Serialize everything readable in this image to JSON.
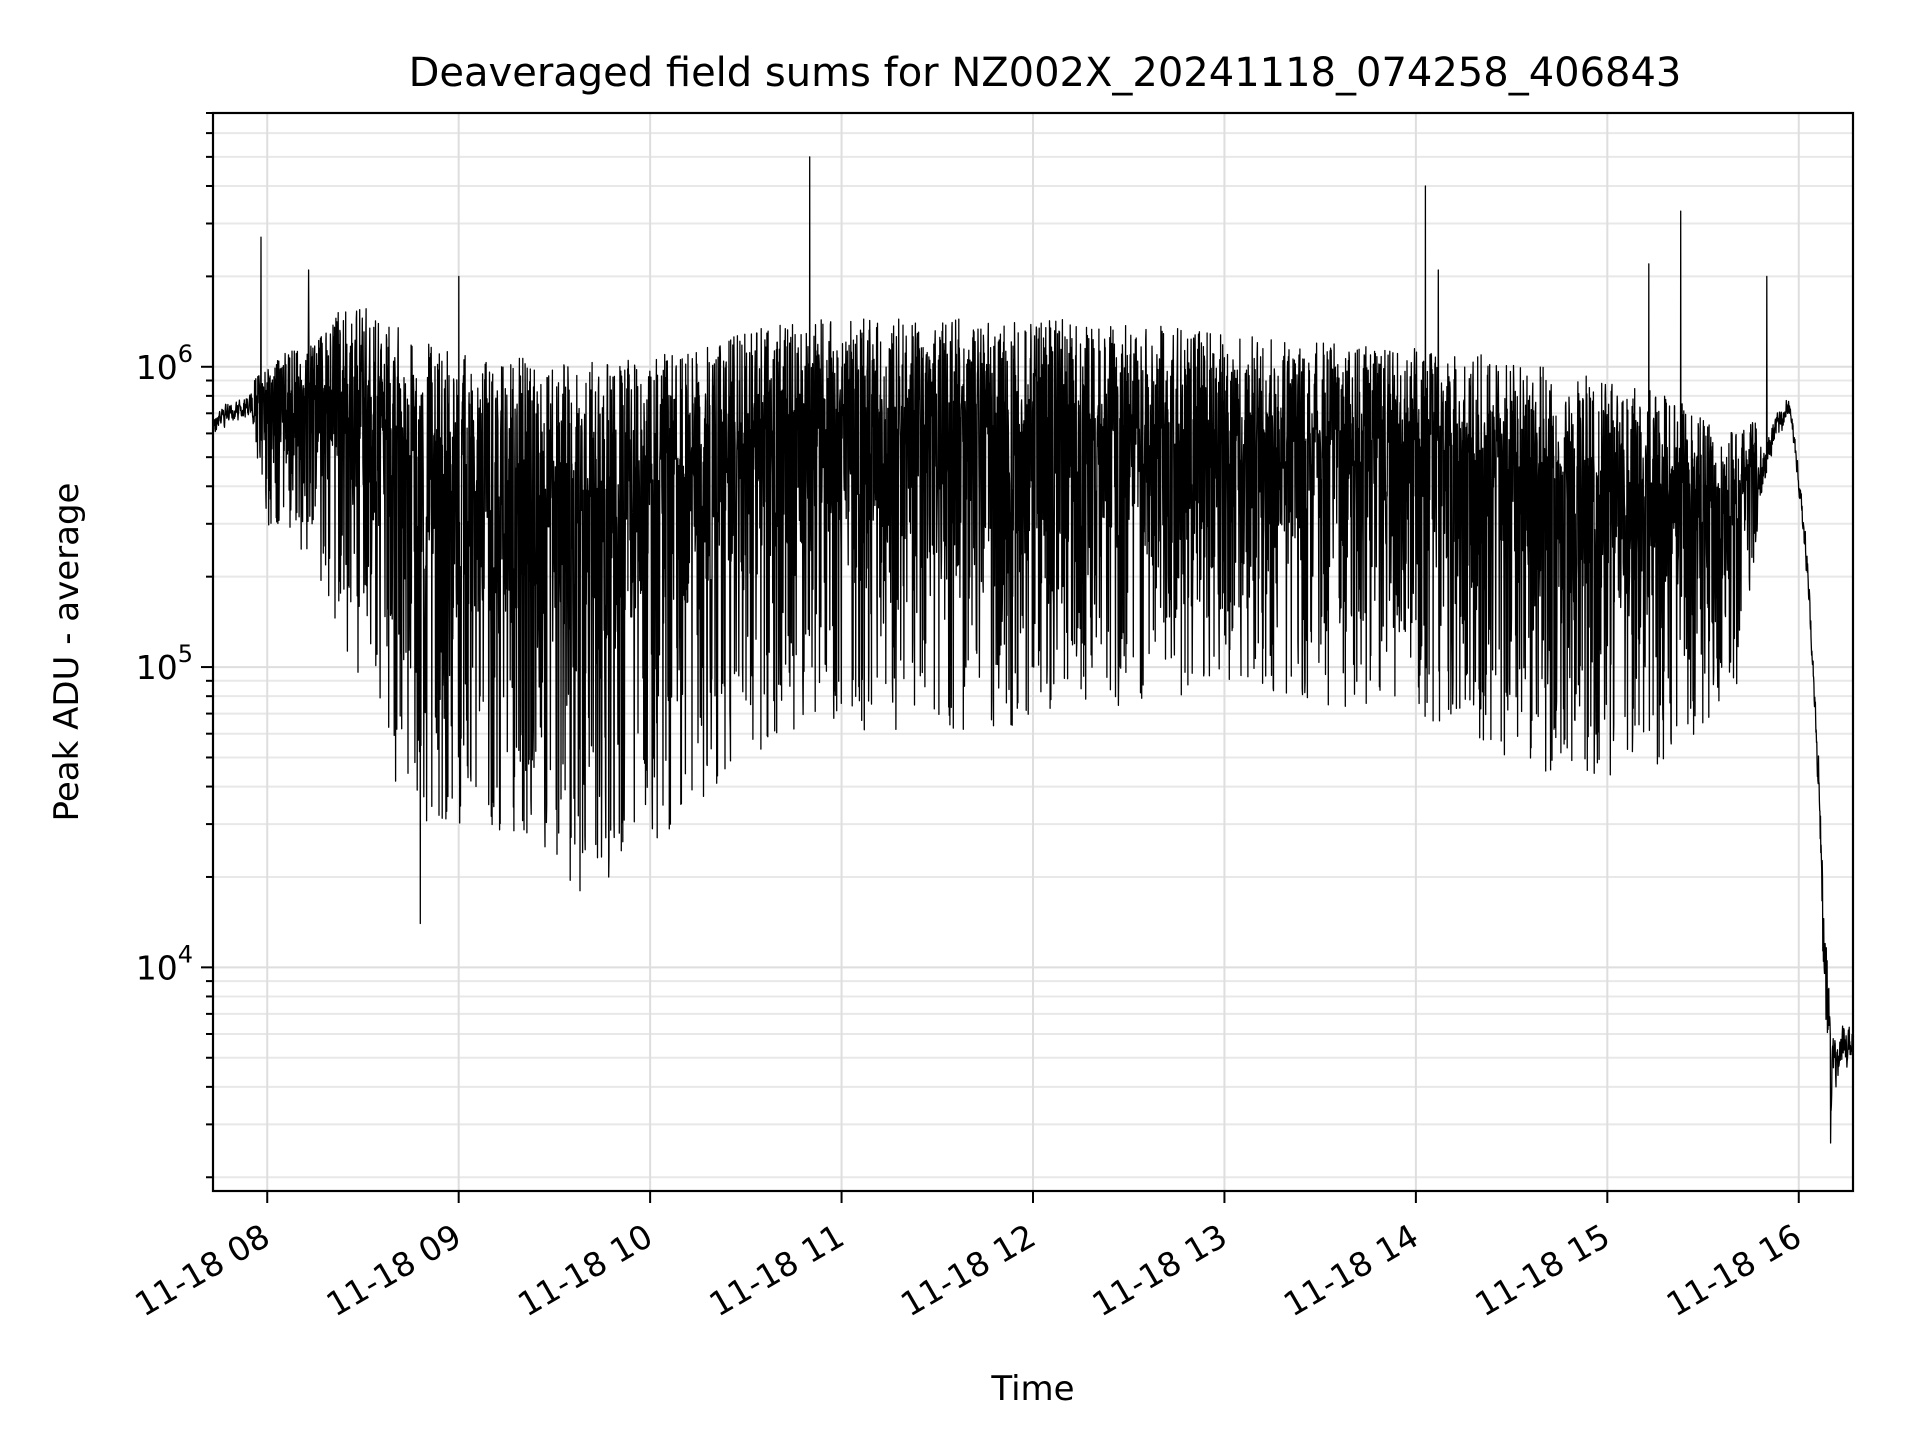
{
  "chart_data": {
    "type": "line",
    "title": "Deaveraged field sums for NZ002X_20241118_074258_406843",
    "xlabel": "Time",
    "ylabel": "Peak ADU - average",
    "yscale": "log",
    "grid": true,
    "grid_minor": true,
    "color": "#000000",
    "xlim": [
      "11-18 07:43",
      "11-18 16:17"
    ],
    "ylim": [
      1800,
      7000000
    ],
    "x_ticks": [
      "11-18 08",
      "11-18 09",
      "11-18 10",
      "11-18 11",
      "11-18 12",
      "11-18 13",
      "11-18 14",
      "11-18 15",
      "11-18 16"
    ],
    "y_ticks": [
      {
        "value": 10000,
        "base": "10",
        "exp": "4"
      },
      {
        "value": 100000,
        "base": "10",
        "exp": "5"
      },
      {
        "value": 1000000,
        "base": "10",
        "exp": "6"
      }
    ],
    "envelope": [
      {
        "x": "11-18 07:43",
        "low": 550000,
        "high": 750000
      },
      {
        "x": "11-18 07:55",
        "low": 650000,
        "high": 900000
      },
      {
        "x": "11-18 08:00",
        "low": 300000,
        "high": 1000000
      },
      {
        "x": "11-18 08:10",
        "low": 250000,
        "high": 1200000
      },
      {
        "x": "11-18 08:20",
        "low": 150000,
        "high": 1500000
      },
      {
        "x": "11-18 08:30",
        "low": 80000,
        "high": 1600000
      },
      {
        "x": "11-18 08:40",
        "low": 40000,
        "high": 1400000
      },
      {
        "x": "11-18 08:50",
        "low": 28000,
        "high": 1200000
      },
      {
        "x": "11-18 09:00",
        "low": 30000,
        "high": 1100000
      },
      {
        "x": "11-18 09:15",
        "low": 28000,
        "high": 1100000
      },
      {
        "x": "11-18 09:30",
        "low": 22000,
        "high": 1050000
      },
      {
        "x": "11-18 09:45",
        "low": 22000,
        "high": 1050000
      },
      {
        "x": "11-18 10:00",
        "low": 25000,
        "high": 1100000
      },
      {
        "x": "11-18 10:15",
        "low": 35000,
        "high": 1150000
      },
      {
        "x": "11-18 10:30",
        "low": 50000,
        "high": 1300000
      },
      {
        "x": "11-18 10:45",
        "low": 60000,
        "high": 1450000
      },
      {
        "x": "11-18 11:00",
        "low": 60000,
        "high": 1450000
      },
      {
        "x": "11-18 11:30",
        "low": 60000,
        "high": 1450000
      },
      {
        "x": "11-18 12:00",
        "low": 65000,
        "high": 1450000
      },
      {
        "x": "11-18 12:30",
        "low": 75000,
        "high": 1400000
      },
      {
        "x": "11-18 13:00",
        "low": 85000,
        "high": 1300000
      },
      {
        "x": "11-18 13:30",
        "low": 75000,
        "high": 1200000
      },
      {
        "x": "11-18 14:00",
        "low": 70000,
        "high": 1150000
      },
      {
        "x": "11-18 14:20",
        "low": 55000,
        "high": 1100000
      },
      {
        "x": "11-18 14:40",
        "low": 45000,
        "high": 1000000
      },
      {
        "x": "11-18 15:00",
        "low": 42000,
        "high": 900000
      },
      {
        "x": "11-18 15:20",
        "low": 48000,
        "high": 800000
      },
      {
        "x": "11-18 15:40",
        "low": 80000,
        "high": 600000
      },
      {
        "x": "11-18 15:50",
        "low": 400000,
        "high": 700000
      },
      {
        "x": "11-18 15:57",
        "low": 650000,
        "high": 850000
      },
      {
        "x": "11-18 16:00",
        "low": 350000,
        "high": 500000
      },
      {
        "x": "11-18 16:03",
        "low": 150000,
        "high": 250000
      },
      {
        "x": "11-18 16:06",
        "low": 30000,
        "high": 60000
      },
      {
        "x": "11-18 16:08",
        "low": 8000,
        "high": 15000
      },
      {
        "x": "11-18 16:10",
        "low": 3000,
        "high": 7000
      },
      {
        "x": "11-18 16:13",
        "low": 4000,
        "high": 7500
      },
      {
        "x": "11-18 16:17",
        "low": 4200,
        "high": 7000
      }
    ],
    "peaks": [
      {
        "x": "11-18 07:58",
        "y": 2700000
      },
      {
        "x": "11-18 08:13",
        "y": 2100000
      },
      {
        "x": "11-18 09:00",
        "y": 2000000
      },
      {
        "x": "11-18 10:50",
        "y": 5000000
      },
      {
        "x": "11-18 14:03",
        "y": 4000000
      },
      {
        "x": "11-18 14:07",
        "y": 2100000
      },
      {
        "x": "11-18 15:13",
        "y": 2200000
      },
      {
        "x": "11-18 15:23",
        "y": 3300000
      },
      {
        "x": "11-18 15:50",
        "y": 2000000
      }
    ],
    "troughs": [
      {
        "x": "11-18 08:48",
        "y": 14000
      },
      {
        "x": "11-18 09:35",
        "y": 19500
      },
      {
        "x": "11-18 09:38",
        "y": 18000
      },
      {
        "x": "11-18 09:47",
        "y": 20000
      },
      {
        "x": "11-18 16:10",
        "y": 2600
      }
    ]
  }
}
